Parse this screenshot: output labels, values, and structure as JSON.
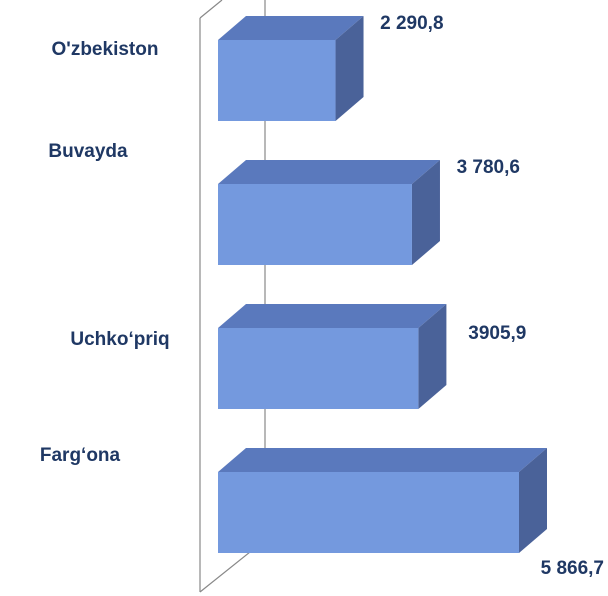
{
  "chart_data": {
    "type": "bar3d-horizontal",
    "categories": [
      "O'zbekiston",
      "Buvayda",
      "Uchko‘priq",
      "Farg‘ona"
    ],
    "values": [
      2290.8,
      3780.6,
      3905.9,
      5866.7
    ],
    "value_labels": [
      "2 290,8",
      "3 780,6",
      "3905,9",
      "5 866,7"
    ],
    "color": "#7499de"
  }
}
